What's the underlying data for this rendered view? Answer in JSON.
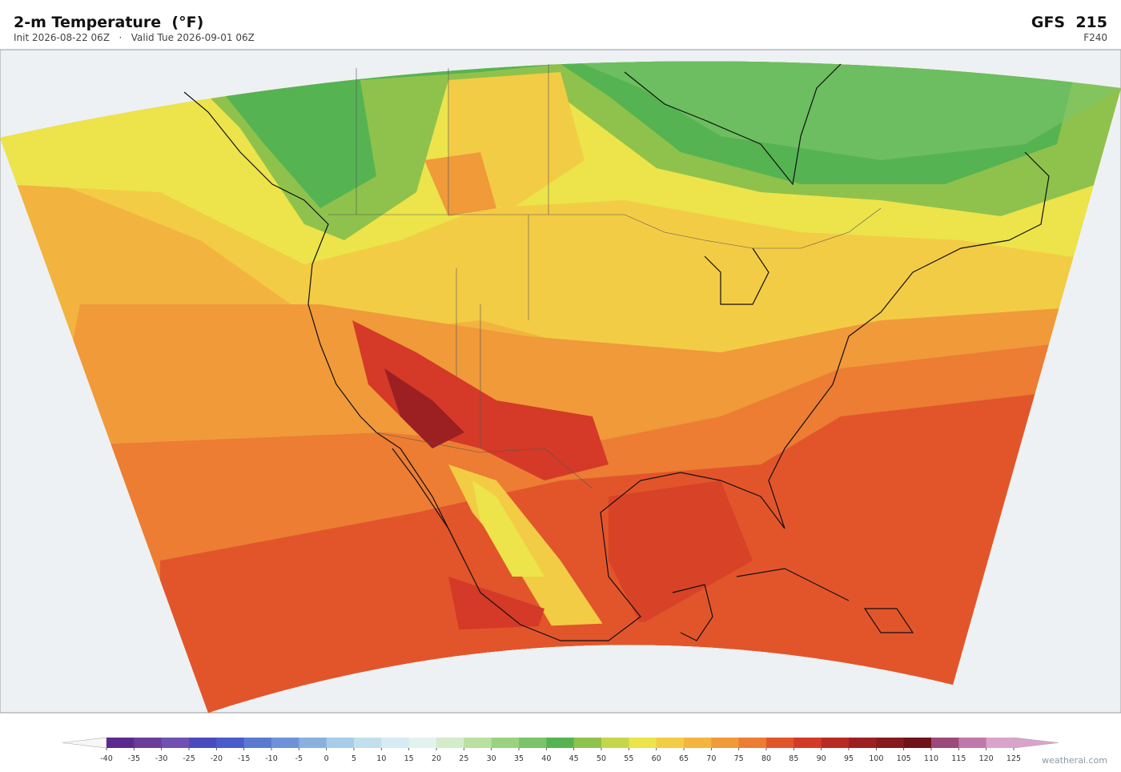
{
  "header": {
    "title": "2-m Temperature  (°F)",
    "subtitle": "Init 2026-08-22 06Z   ·   Valid Tue 2026-09-01 06Z",
    "model": "GFS  215",
    "forecast_hour": "F240"
  },
  "colorbar": {
    "ticks": [
      -40,
      -35,
      -30,
      -25,
      -20,
      -15,
      -10,
      -5,
      0,
      5,
      10,
      15,
      20,
      25,
      30,
      35,
      40,
      45,
      50,
      55,
      60,
      65,
      70,
      75,
      80,
      85,
      90,
      95,
      100,
      105,
      110,
      115,
      120,
      125
    ],
    "colors": [
      "#5b2a8f",
      "#6a3d9a",
      "#7050b0",
      "#4a4abf",
      "#4a5ccc",
      "#5a7ad0",
      "#6f92d8",
      "#8ab0de",
      "#a7cce8",
      "#c2dfee",
      "#d6ecf2",
      "#e3f2ee",
      "#d4ecc9",
      "#b9e0a0",
      "#9ad27f",
      "#7bc46a",
      "#56b352",
      "#8fc24c",
      "#c6d64a",
      "#ece44a",
      "#f3cc45",
      "#f4b540",
      "#f09a3a",
      "#ec7d33",
      "#e2552b",
      "#d43a27",
      "#b92a24",
      "#9c1f22",
      "#861b1f",
      "#6e1419",
      "#9b4a7b",
      "#c078ab",
      "#d9a3cc"
    ],
    "under_color": "#f7f7f7",
    "over_color": "#d9a3cc"
  },
  "footer": {
    "credit": "weatherai.com"
  }
}
